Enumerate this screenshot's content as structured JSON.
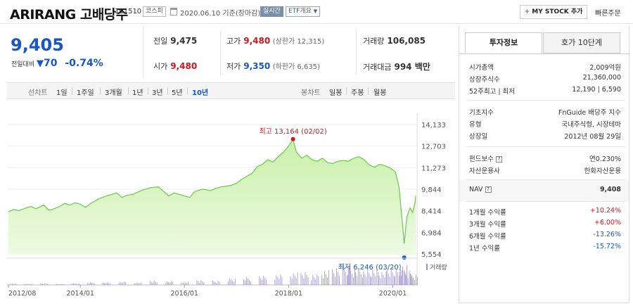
{
  "header": {
    "stock_name": "ARIRANG 고배당주",
    "stock_code": "161510",
    "market_badge": "코스피",
    "date_text": "2020.06.10 기준(장마감)",
    "live_badge": "실시간",
    "etf_badge": "ETF개요",
    "mystock_button": "MY STOCK 추가",
    "quick_order": "빠른주문"
  },
  "price": {
    "current": "9,405",
    "change_label": "전일대비",
    "change_value": "70",
    "change_pct": "-0.74%"
  },
  "quote": {
    "prev_label": "전일",
    "prev_value": "9,475",
    "high_label": "고가",
    "high_value": "9,480",
    "high_upper": "(상한가 12,315)",
    "volume_label": "거래량",
    "volume_value": "106,085",
    "open_label": "시가",
    "open_value": "9,480",
    "low_label": "저가",
    "low_value": "9,350",
    "low_lower": "(하한가 6,635)",
    "amount_label": "거래대금",
    "amount_value": "994 백만"
  },
  "period_bar": {
    "line_title": "선차트",
    "periods": [
      "1일",
      "1주일",
      "3개월",
      "1년",
      "3년",
      "5년",
      "10년"
    ],
    "active": "10년",
    "candle_title": "봉차트",
    "candles": [
      "일봉",
      "주봉",
      "월봉"
    ]
  },
  "chart_data": {
    "type": "area",
    "y_ticks": [
      "14,133",
      "12,703",
      "11,273",
      "9,844",
      "8,414",
      "6,984",
      "5,554"
    ],
    "ylim": [
      5554,
      14133
    ],
    "x_ticks": [
      "2012/08",
      "2014/01",
      "2016/01",
      "2018/01",
      "2020/01"
    ],
    "max_label": "최고 13,164 (02/02)",
    "min_label": "최저 6,246 (03/20)",
    "volume_legend": "거래량",
    "price_series": [
      [
        2012.62,
        8350
      ],
      [
        2012.72,
        8500
      ],
      [
        2012.82,
        8420
      ],
      [
        2012.95,
        8600
      ],
      [
        2013.05,
        8700
      ],
      [
        2013.15,
        8550
      ],
      [
        2013.3,
        8800
      ],
      [
        2013.4,
        8450
      ],
      [
        2013.5,
        8550
      ],
      [
        2013.6,
        8700
      ],
      [
        2013.7,
        8900
      ],
      [
        2013.8,
        8800
      ],
      [
        2013.9,
        8950
      ],
      [
        2014.0,
        8850
      ],
      [
        2014.1,
        8650
      ],
      [
        2014.2,
        8900
      ],
      [
        2014.35,
        9200
      ],
      [
        2014.5,
        9400
      ],
      [
        2014.6,
        9500
      ],
      [
        2014.7,
        9600
      ],
      [
        2014.8,
        9300
      ],
      [
        2014.9,
        9450
      ],
      [
        2015.0,
        9500
      ],
      [
        2015.1,
        9650
      ],
      [
        2015.2,
        9800
      ],
      [
        2015.35,
        9950
      ],
      [
        2015.5,
        10000
      ],
      [
        2015.6,
        9700
      ],
      [
        2015.7,
        9400
      ],
      [
        2015.8,
        9600
      ],
      [
        2015.9,
        9500
      ],
      [
        2016.0,
        9400
      ],
      [
        2016.1,
        9300
      ],
      [
        2016.2,
        9700
      ],
      [
        2016.35,
        9850
      ],
      [
        2016.5,
        9750
      ],
      [
        2016.6,
        9900
      ],
      [
        2016.7,
        10000
      ],
      [
        2016.8,
        10050
      ],
      [
        2016.9,
        10100
      ],
      [
        2017.0,
        10250
      ],
      [
        2017.1,
        10500
      ],
      [
        2017.2,
        10700
      ],
      [
        2017.3,
        10900
      ],
      [
        2017.4,
        11350
      ],
      [
        2017.5,
        11500
      ],
      [
        2017.6,
        11800
      ],
      [
        2017.7,
        11650
      ],
      [
        2017.8,
        12000
      ],
      [
        2017.9,
        12300
      ],
      [
        2018.0,
        12700
      ],
      [
        2018.085,
        13164
      ],
      [
        2018.15,
        12300
      ],
      [
        2018.25,
        11900
      ],
      [
        2018.35,
        12100
      ],
      [
        2018.45,
        11800
      ],
      [
        2018.55,
        11700
      ],
      [
        2018.65,
        11900
      ],
      [
        2018.75,
        11600
      ],
      [
        2018.85,
        11550
      ],
      [
        2018.95,
        11700
      ],
      [
        2019.05,
        11750
      ],
      [
        2019.15,
        11700
      ],
      [
        2019.25,
        11900
      ],
      [
        2019.35,
        12000
      ],
      [
        2019.45,
        11800
      ],
      [
        2019.55,
        11450
      ],
      [
        2019.65,
        11300
      ],
      [
        2019.75,
        11500
      ],
      [
        2019.85,
        11400
      ],
      [
        2019.95,
        11250
      ],
      [
        2020.05,
        11000
      ],
      [
        2020.12,
        10000
      ],
      [
        2020.18,
        7800
      ],
      [
        2020.22,
        6246
      ],
      [
        2020.27,
        8000
      ],
      [
        2020.33,
        8600
      ],
      [
        2020.38,
        8300
      ],
      [
        2020.43,
        9000
      ],
      [
        2020.44,
        9405
      ]
    ],
    "volume_series": [
      [
        2012.7,
        0.06
      ],
      [
        2013.0,
        0.05
      ],
      [
        2013.3,
        0.07
      ],
      [
        2013.6,
        0.05
      ],
      [
        2013.9,
        0.08
      ],
      [
        2014.2,
        0.12
      ],
      [
        2014.5,
        0.1
      ],
      [
        2014.8,
        0.15
      ],
      [
        2015.1,
        0.12
      ],
      [
        2015.4,
        0.2
      ],
      [
        2015.7,
        0.18
      ],
      [
        2016.0,
        0.15
      ],
      [
        2016.3,
        0.25
      ],
      [
        2016.6,
        0.2
      ],
      [
        2016.9,
        0.3
      ],
      [
        2017.2,
        0.35
      ],
      [
        2017.5,
        0.4
      ],
      [
        2017.8,
        0.45
      ],
      [
        2018.1,
        0.55
      ],
      [
        2018.3,
        0.6
      ],
      [
        2018.5,
        0.5
      ],
      [
        2018.7,
        0.7
      ],
      [
        2018.9,
        0.85
      ],
      [
        2019.1,
        0.95
      ],
      [
        2019.2,
        0.8
      ],
      [
        2019.35,
        0.75
      ],
      [
        2019.5,
        0.65
      ],
      [
        2019.65,
        0.7
      ],
      [
        2019.8,
        0.6
      ],
      [
        2019.95,
        0.75
      ],
      [
        2020.1,
        0.85
      ],
      [
        2020.2,
        0.95
      ],
      [
        2020.3,
        0.7
      ],
      [
        2020.4,
        0.5
      ]
    ]
  },
  "side": {
    "tab_info": "투자정보",
    "tab_ho": "호가 10단계",
    "rows": [
      {
        "label": "시가총액",
        "value": "2,009억원"
      },
      {
        "label": "상장주식수",
        "value": "21,360,000"
      },
      {
        "label": "52주최고 | 최저",
        "value": "12,190 | 6,590"
      },
      {
        "label": "기초지수",
        "value": "FnGuide 배당주 지수"
      },
      {
        "label": "유형",
        "value": "국내주식형, 시장테마"
      },
      {
        "label": "상장일",
        "value": "2012년 08월 29일"
      },
      {
        "label": "펀드보수",
        "value": "연0.230%"
      },
      {
        "label": "자산운용사",
        "value": "한화자산운용"
      },
      {
        "label": "NAV",
        "value": "9,408"
      },
      {
        "label": "1개월 수익률",
        "value": "+10.24%"
      },
      {
        "label": "3개월 수익률",
        "value": "+6.00%"
      },
      {
        "label": "6개월 수익률",
        "value": "-13.26%"
      },
      {
        "label": "1년 수익률",
        "value": "-15.72%"
      }
    ]
  },
  "colors": {
    "up": "#d0161d",
    "down": "#1a55c8",
    "area_fill": "#c9f0a8",
    "area_line": "#6cc94a"
  }
}
